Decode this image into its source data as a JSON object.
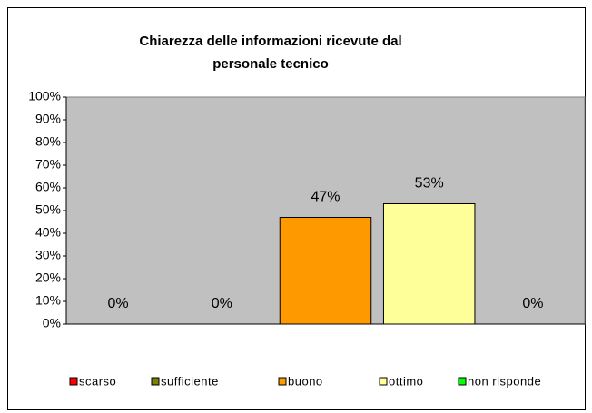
{
  "chart_data": {
    "type": "bar",
    "title": [
      "Chiarezza delle informazioni ricevute dal",
      "personale tecnico"
    ],
    "categories": [
      "scarso",
      "sufficiente",
      "buono",
      "ottimo",
      "non risponde"
    ],
    "values": [
      0,
      0,
      47,
      53,
      0
    ],
    "value_labels": [
      "0%",
      "0%",
      "47%",
      "53%",
      "0%"
    ],
    "colors": [
      "#ff0000",
      "#808000",
      "#ff9900",
      "#ffff99",
      "#00ff00"
    ],
    "ylim": [
      0,
      100
    ],
    "yticks": [
      {
        "value": 0,
        "label": "0%"
      },
      {
        "value": 10,
        "label": "10%"
      },
      {
        "value": 20,
        "label": "20%"
      },
      {
        "value": 30,
        "label": "30%"
      },
      {
        "value": 40,
        "label": "40%"
      },
      {
        "value": 50,
        "label": "50%"
      },
      {
        "value": 60,
        "label": "60%"
      },
      {
        "value": 70,
        "label": "70%"
      },
      {
        "value": 80,
        "label": "80%"
      },
      {
        "value": 90,
        "label": "90%"
      },
      {
        "value": 100,
        "label": "100%"
      }
    ],
    "grid": false,
    "legend": "bottom"
  }
}
